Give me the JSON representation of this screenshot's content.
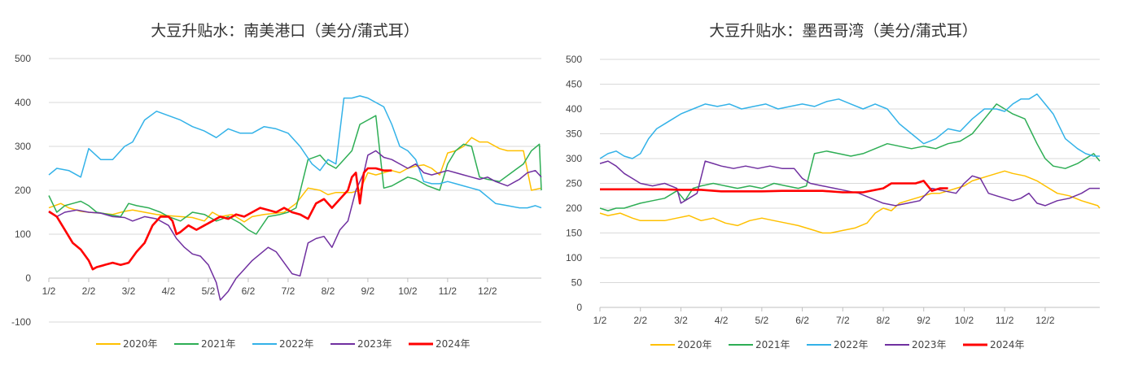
{
  "chart_data": [
    {
      "type": "line",
      "title": "大豆升贴水：南美港口（美分/蒲式耳）",
      "x_ticks": [
        "1/2",
        "2/2",
        "3/2",
        "4/2",
        "5/2",
        "6/2",
        "7/2",
        "8/2",
        "9/2",
        "10/2",
        "11/2",
        "12/2"
      ],
      "y_ticks": [
        "500",
        "400",
        "300",
        "200",
        "100",
        "0",
        "-100"
      ],
      "ylim": [
        -100,
        500
      ],
      "grid": true,
      "legend_position": "bottom",
      "series": [
        {
          "name": "2020年",
          "color": "#FFC000",
          "x": [
            0,
            0.3,
            0.5,
            0.8,
            1.0,
            1.3,
            1.6,
            1.9,
            2.1,
            2.4,
            2.7,
            3.0,
            3.3,
            3.6,
            3.9,
            4.1,
            4.3,
            4.6,
            4.9,
            5.1,
            5.4,
            5.7,
            5.9,
            6.2,
            6.5,
            6.8,
            7.0,
            7.2,
            7.4,
            7.6,
            7.8,
            8.0,
            8.2,
            8.4,
            8.6,
            8.8,
            9.0,
            9.2,
            9.4,
            9.6,
            9.8,
            10.0,
            10.2,
            10.4,
            10.6,
            10.8,
            11.0,
            11.3,
            11.5,
            11.7,
            11.9,
            12.1,
            12.35
          ],
          "y": [
            160,
            170,
            160,
            152,
            150,
            148,
            145,
            152,
            155,
            150,
            145,
            142,
            140,
            138,
            130,
            150,
            140,
            145,
            128,
            140,
            145,
            148,
            150,
            170,
            205,
            200,
            190,
            195,
            195,
            195,
            200,
            240,
            235,
            240,
            245,
            240,
            250,
            255,
            258,
            250,
            235,
            285,
            290,
            300,
            320,
            310,
            310,
            295,
            290,
            290,
            290,
            200,
            205
          ]
        },
        {
          "name": "2021年",
          "color": "#2EAE55",
          "x": [
            0,
            0.2,
            0.4,
            0.6,
            0.8,
            1.0,
            1.2,
            1.5,
            1.8,
            2.0,
            2.2,
            2.5,
            2.8,
            3.0,
            3.3,
            3.6,
            3.9,
            4.2,
            4.5,
            4.8,
            5.0,
            5.2,
            5.5,
            5.8,
            6.0,
            6.2,
            6.5,
            6.8,
            7.0,
            7.2,
            7.4,
            7.6,
            7.8,
            8.0,
            8.2,
            8.4,
            8.6,
            8.8,
            9.0,
            9.2,
            9.5,
            9.8,
            10.0,
            10.2,
            10.4,
            10.6,
            10.8,
            11.0,
            11.3,
            11.6,
            11.9,
            12.1,
            12.3,
            12.35
          ],
          "y": [
            188,
            150,
            165,
            170,
            175,
            165,
            150,
            145,
            140,
            170,
            165,
            160,
            150,
            140,
            130,
            150,
            145,
            130,
            140,
            125,
            110,
            100,
            140,
            145,
            150,
            160,
            270,
            280,
            260,
            250,
            270,
            290,
            350,
            360,
            370,
            205,
            210,
            220,
            230,
            225,
            210,
            200,
            260,
            290,
            305,
            300,
            230,
            225,
            220,
            240,
            260,
            290,
            305,
            200
          ]
        },
        {
          "name": "2022年",
          "color": "#33B2E8",
          "x": [
            0,
            0.2,
            0.5,
            0.8,
            1.0,
            1.3,
            1.6,
            1.9,
            2.1,
            2.4,
            2.7,
            3.0,
            3.3,
            3.6,
            3.9,
            4.2,
            4.5,
            4.8,
            5.1,
            5.4,
            5.7,
            6.0,
            6.3,
            6.6,
            6.8,
            7.0,
            7.2,
            7.4,
            7.6,
            7.8,
            8.0,
            8.2,
            8.4,
            8.6,
            8.8,
            9.0,
            9.2,
            9.4,
            9.6,
            9.8,
            10.0,
            10.2,
            10.4,
            10.6,
            10.8,
            11.0,
            11.2,
            11.5,
            11.8,
            12.0,
            12.2,
            12.35
          ],
          "y": [
            235,
            250,
            245,
            230,
            295,
            270,
            270,
            300,
            310,
            360,
            380,
            370,
            360,
            345,
            335,
            320,
            340,
            330,
            330,
            345,
            340,
            330,
            300,
            260,
            245,
            270,
            260,
            410,
            410,
            415,
            410,
            400,
            390,
            350,
            300,
            290,
            270,
            220,
            215,
            215,
            220,
            215,
            210,
            205,
            200,
            185,
            170,
            165,
            160,
            160,
            165,
            160
          ]
        },
        {
          "name": "2023年",
          "color": "#7030A0",
          "x": [
            0,
            0.2,
            0.4,
            0.7,
            1.0,
            1.3,
            1.6,
            1.9,
            2.1,
            2.4,
            2.7,
            3.0,
            3.2,
            3.4,
            3.6,
            3.8,
            4.0,
            4.2,
            4.3,
            4.5,
            4.7,
            4.9,
            5.1,
            5.3,
            5.5,
            5.7,
            5.9,
            6.1,
            6.3,
            6.5,
            6.7,
            6.9,
            7.1,
            7.3,
            7.5,
            7.7,
            7.8,
            7.9,
            8.0,
            8.2,
            8.4,
            8.6,
            8.8,
            9.0,
            9.2,
            9.4,
            9.6,
            9.8,
            10.0,
            10.2,
            10.4,
            10.6,
            10.8,
            11.0,
            11.2,
            11.5,
            11.8,
            12.0,
            12.2,
            12.35
          ],
          "y": [
            150,
            140,
            150,
            155,
            150,
            148,
            140,
            138,
            130,
            140,
            135,
            120,
            90,
            70,
            55,
            50,
            30,
            -10,
            -50,
            -30,
            0,
            20,
            40,
            55,
            70,
            60,
            35,
            10,
            5,
            80,
            90,
            95,
            70,
            110,
            130,
            200,
            220,
            240,
            280,
            290,
            275,
            270,
            260,
            250,
            260,
            240,
            235,
            240,
            245,
            240,
            235,
            230,
            225,
            230,
            220,
            210,
            225,
            240,
            245,
            230
          ]
        },
        {
          "name": "2024年",
          "color": "#FF0000",
          "x": [
            0,
            0.2,
            0.4,
            0.6,
            0.8,
            1.0,
            1.1,
            1.2,
            1.4,
            1.6,
            1.8,
            2.0,
            2.2,
            2.4,
            2.6,
            2.8,
            3.0,
            3.1,
            3.2,
            3.3,
            3.5,
            3.7,
            3.9,
            4.1,
            4.3,
            4.5,
            4.7,
            4.9,
            5.1,
            5.3,
            5.5,
            5.7,
            5.9,
            6.1,
            6.3,
            6.5,
            6.7,
            6.9,
            7.1,
            7.3,
            7.5,
            7.6,
            7.7,
            7.8,
            7.9,
            8.0,
            8.2,
            8.4,
            8.6
          ],
          "y": [
            152,
            140,
            110,
            80,
            65,
            40,
            20,
            25,
            30,
            35,
            30,
            35,
            60,
            80,
            120,
            140,
            140,
            130,
            100,
            105,
            120,
            110,
            120,
            130,
            140,
            135,
            145,
            140,
            150,
            160,
            155,
            150,
            160,
            150,
            145,
            135,
            170,
            180,
            160,
            180,
            200,
            230,
            240,
            170,
            240,
            250,
            250,
            245,
            245
          ]
        }
      ]
    },
    {
      "type": "line",
      "title": "大豆升贴水：墨西哥湾（美分/蒲式耳）",
      "x_ticks": [
        "1/2",
        "2/2",
        "3/2",
        "4/2",
        "5/2",
        "6/2",
        "7/2",
        "8/2",
        "9/2",
        "10/2",
        "11/2",
        "12/2"
      ],
      "y_ticks": [
        "500",
        "450",
        "400",
        "350",
        "300",
        "250",
        "200",
        "150",
        "100",
        "50",
        "0"
      ],
      "ylim": [
        0,
        500
      ],
      "grid": true,
      "legend_position": "bottom",
      "series": [
        {
          "name": "2020年",
          "color": "#FFC000",
          "x": [
            0,
            0.2,
            0.5,
            0.8,
            1.0,
            1.3,
            1.6,
            1.9,
            2.2,
            2.5,
            2.8,
            3.1,
            3.4,
            3.7,
            4.0,
            4.3,
            4.6,
            4.9,
            5.1,
            5.3,
            5.5,
            5.7,
            6.0,
            6.3,
            6.6,
            6.8,
            7.0,
            7.2,
            7.4,
            7.6,
            7.8,
            8.0,
            8.2,
            8.4,
            8.6,
            8.8,
            9.0,
            9.2,
            9.4,
            9.6,
            9.8,
            10.0,
            10.2,
            10.5,
            10.8,
            11.0,
            11.3,
            11.6,
            11.9,
            12.1,
            12.3,
            12.35
          ],
          "y": [
            190,
            185,
            190,
            180,
            175,
            175,
            175,
            180,
            185,
            175,
            180,
            170,
            165,
            175,
            180,
            175,
            170,
            165,
            160,
            155,
            150,
            150,
            155,
            160,
            170,
            190,
            200,
            195,
            210,
            215,
            220,
            225,
            230,
            230,
            235,
            240,
            245,
            255,
            260,
            265,
            270,
            275,
            270,
            265,
            255,
            245,
            230,
            225,
            215,
            210,
            205,
            200
          ]
        },
        {
          "name": "2021年",
          "color": "#2EAE55",
          "x": [
            0,
            0.2,
            0.4,
            0.6,
            0.8,
            1.0,
            1.3,
            1.6,
            1.9,
            2.1,
            2.3,
            2.5,
            2.8,
            3.1,
            3.4,
            3.7,
            4.0,
            4.3,
            4.6,
            4.9,
            5.1,
            5.3,
            5.6,
            5.9,
            6.2,
            6.5,
            6.8,
            7.1,
            7.4,
            7.7,
            8.0,
            8.3,
            8.6,
            8.9,
            9.2,
            9.5,
            9.8,
            10.0,
            10.2,
            10.5,
            10.8,
            11.0,
            11.2,
            11.5,
            11.8,
            12.0,
            12.2,
            12.35
          ],
          "y": [
            200,
            195,
            200,
            200,
            205,
            210,
            215,
            220,
            235,
            215,
            240,
            245,
            250,
            245,
            240,
            245,
            240,
            250,
            245,
            240,
            245,
            310,
            315,
            310,
            305,
            310,
            320,
            330,
            325,
            320,
            325,
            320,
            330,
            335,
            350,
            380,
            410,
            400,
            390,
            380,
            330,
            300,
            285,
            280,
            290,
            300,
            310,
            295
          ]
        },
        {
          "name": "2022年",
          "color": "#33B2E8",
          "x": [
            0,
            0.2,
            0.4,
            0.6,
            0.8,
            1.0,
            1.2,
            1.4,
            1.6,
            1.8,
            2.0,
            2.3,
            2.6,
            2.9,
            3.2,
            3.5,
            3.8,
            4.1,
            4.4,
            4.7,
            5.0,
            5.3,
            5.6,
            5.9,
            6.2,
            6.5,
            6.8,
            7.1,
            7.4,
            7.7,
            8.0,
            8.3,
            8.6,
            8.9,
            9.2,
            9.5,
            9.8,
            10.0,
            10.2,
            10.4,
            10.6,
            10.8,
            11.0,
            11.2,
            11.5,
            11.8,
            12.0,
            12.2,
            12.35
          ],
          "y": [
            300,
            310,
            315,
            305,
            300,
            310,
            340,
            360,
            370,
            380,
            390,
            400,
            410,
            405,
            410,
            400,
            405,
            410,
            400,
            405,
            410,
            405,
            415,
            420,
            410,
            400,
            410,
            400,
            370,
            350,
            330,
            340,
            360,
            355,
            380,
            400,
            400,
            395,
            410,
            420,
            420,
            430,
            410,
            390,
            340,
            320,
            310,
            305,
            305
          ]
        },
        {
          "name": "2023年",
          "color": "#7030A0",
          "x": [
            0,
            0.2,
            0.4,
            0.6,
            0.8,
            1.0,
            1.3,
            1.6,
            1.9,
            2.0,
            2.2,
            2.4,
            2.6,
            2.8,
            3.0,
            3.3,
            3.6,
            3.9,
            4.2,
            4.5,
            4.8,
            5.0,
            5.2,
            5.5,
            5.8,
            6.1,
            6.4,
            6.7,
            7.0,
            7.3,
            7.6,
            7.9,
            8.2,
            8.5,
            8.8,
            9.0,
            9.2,
            9.4,
            9.6,
            9.8,
            10.0,
            10.2,
            10.4,
            10.6,
            10.8,
            11.0,
            11.3,
            11.6,
            11.9,
            12.1,
            12.35
          ],
          "y": [
            290,
            295,
            285,
            270,
            260,
            250,
            245,
            250,
            240,
            210,
            220,
            230,
            295,
            290,
            285,
            280,
            285,
            280,
            285,
            280,
            280,
            260,
            250,
            245,
            240,
            235,
            230,
            220,
            210,
            205,
            210,
            215,
            240,
            235,
            230,
            250,
            265,
            260,
            230,
            225,
            220,
            215,
            220,
            230,
            210,
            205,
            215,
            220,
            230,
            240,
            240
          ]
        },
        {
          "name": "2024年",
          "color": "#FF0000",
          "x": [
            0,
            0.5,
            1.0,
            1.5,
            2.0,
            2.5,
            3.0,
            3.5,
            4.0,
            4.5,
            5.0,
            5.5,
            6.0,
            6.5,
            7.0,
            7.2,
            7.5,
            7.8,
            8.0,
            8.2,
            8.4,
            8.6
          ],
          "y": [
            238,
            238,
            238,
            238,
            237,
            237,
            234,
            234,
            234,
            235,
            235,
            235,
            232,
            232,
            240,
            250,
            250,
            250,
            255,
            235,
            240,
            240
          ]
        }
      ]
    }
  ]
}
